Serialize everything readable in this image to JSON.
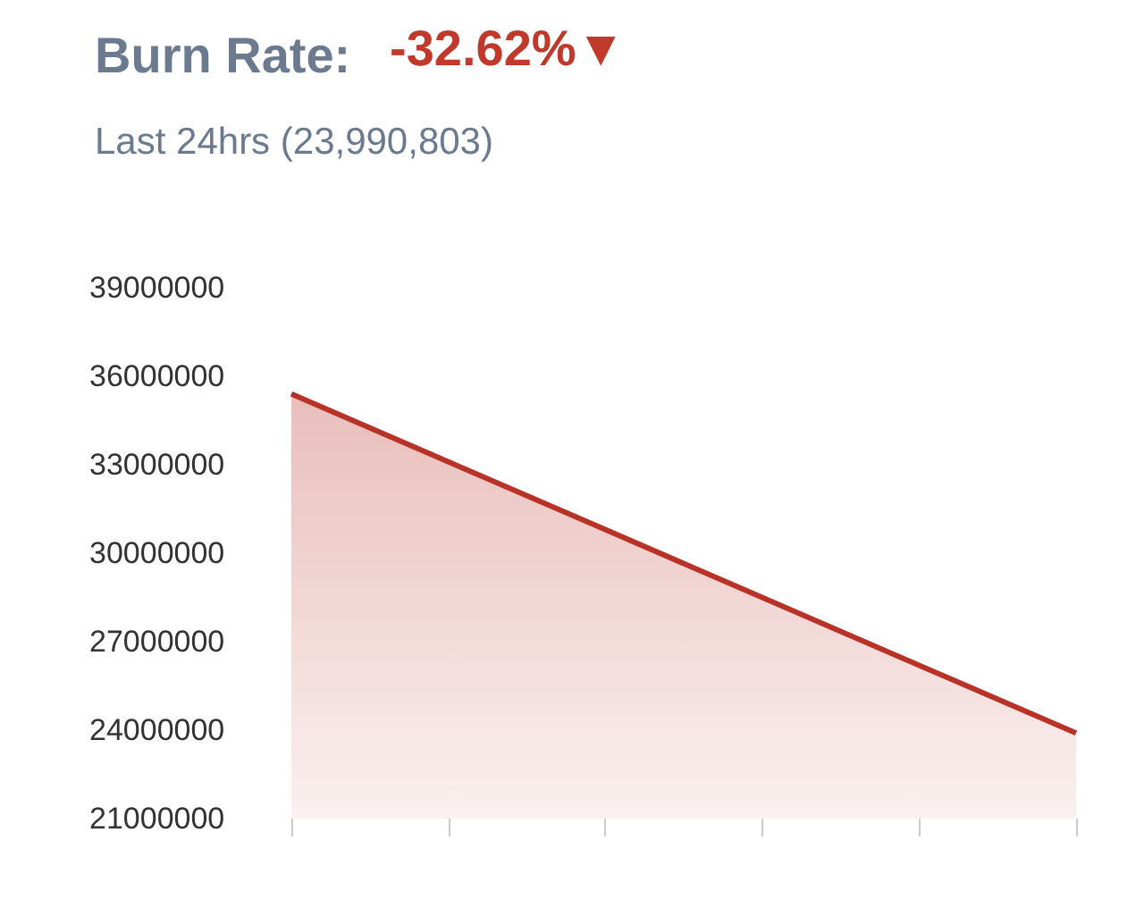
{
  "chart_data": {
    "type": "area",
    "title": "Burn Rate:",
    "subtitle": "Last 24hrs (23,990,803)",
    "annotations": [
      "-32.62%▼"
    ],
    "categories": [
      null,
      null,
      null,
      null,
      null,
      null
    ],
    "series": [
      {
        "color": "#b83227",
        "values": [
          35400000,
          33100000,
          30800000,
          28500000,
          26200000,
          23900000
        ]
      }
    ],
    "ylim": [
      21000000,
      39000000
    ],
    "yticks": [
      21000000,
      24000000,
      27000000,
      30000000,
      33000000,
      36000000,
      39000000
    ],
    "grid": false,
    "marker": "none",
    "tick_labels": "y"
  }
}
